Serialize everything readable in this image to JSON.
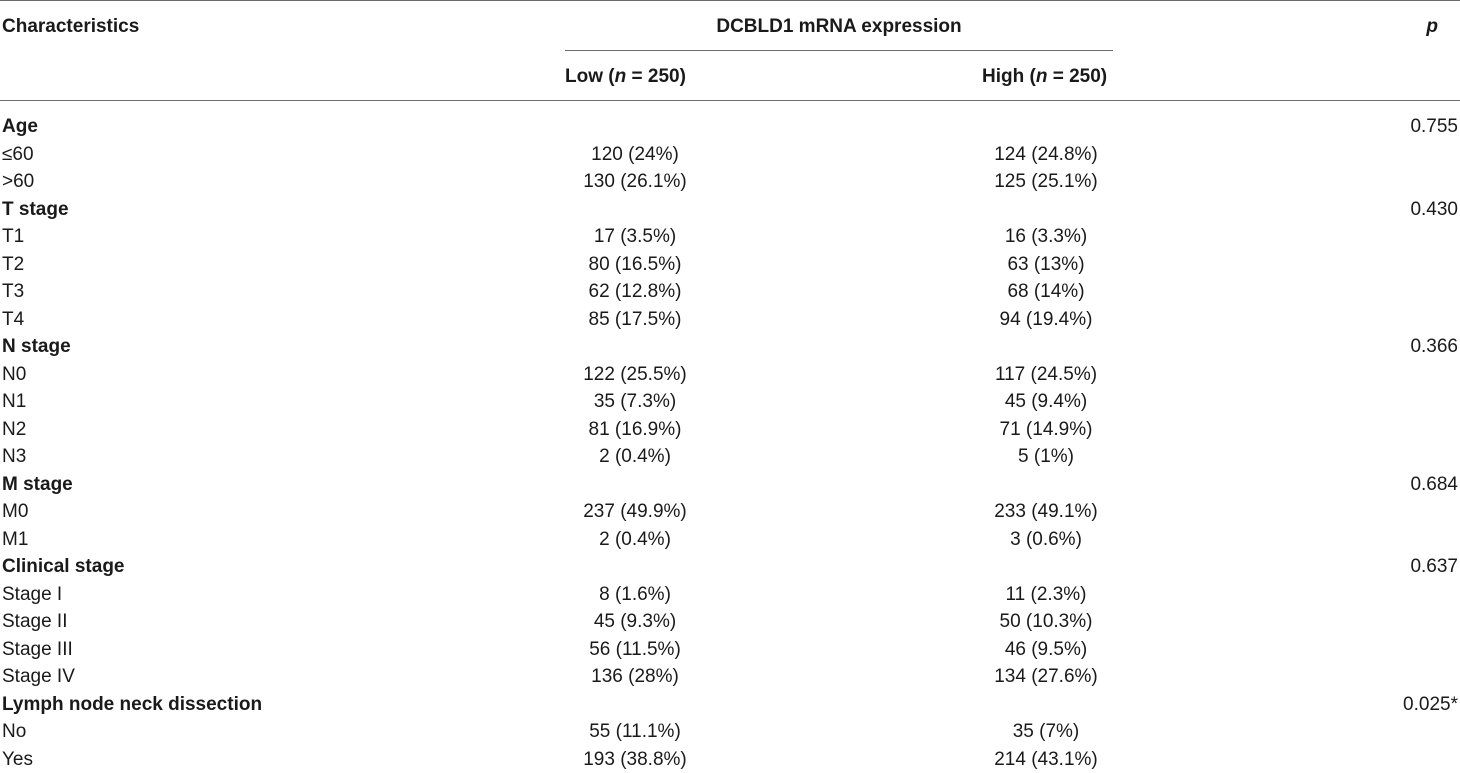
{
  "header": {
    "characteristics": "Characteristics",
    "group_title": "DCBLD1 mRNA expression",
    "p_label": "p",
    "low_prefix": "Low (",
    "low_n": "n",
    "low_suffix": " = 250)",
    "high_prefix": "High (",
    "high_n": "n",
    "high_suffix": " = 250)"
  },
  "rows": [
    {
      "label": "Age",
      "category": true,
      "low": "",
      "high": "",
      "p": "0.755"
    },
    {
      "label": "≤60",
      "category": false,
      "low": "120 (24%)",
      "high": "124 (24.8%)",
      "p": ""
    },
    {
      "label": ">60",
      "category": false,
      "low": "130 (26.1%)",
      "high": "125 (25.1%)",
      "p": ""
    },
    {
      "label": "T stage",
      "category": true,
      "low": "",
      "high": "",
      "p": "0.430"
    },
    {
      "label": "T1",
      "category": false,
      "low": "17 (3.5%)",
      "high": "16 (3.3%)",
      "p": ""
    },
    {
      "label": "T2",
      "category": false,
      "low": "80 (16.5%)",
      "high": "63 (13%)",
      "p": ""
    },
    {
      "label": "T3",
      "category": false,
      "low": "62 (12.8%)",
      "high": "68 (14%)",
      "p": ""
    },
    {
      "label": "T4",
      "category": false,
      "low": "85 (17.5%)",
      "high": "94 (19.4%)",
      "p": ""
    },
    {
      "label": "N stage",
      "category": true,
      "low": "",
      "high": "",
      "p": "0.366"
    },
    {
      "label": "N0",
      "category": false,
      "low": "122 (25.5%)",
      "high": "117 (24.5%)",
      "p": ""
    },
    {
      "label": "N1",
      "category": false,
      "low": "35 (7.3%)",
      "high": "45 (9.4%)",
      "p": ""
    },
    {
      "label": "N2",
      "category": false,
      "low": "81 (16.9%)",
      "high": "71 (14.9%)",
      "p": ""
    },
    {
      "label": "N3",
      "category": false,
      "low": "2 (0.4%)",
      "high": "5 (1%)",
      "p": ""
    },
    {
      "label": "M stage",
      "category": true,
      "low": "",
      "high": "",
      "p": "0.684"
    },
    {
      "label": "M0",
      "category": false,
      "low": "237 (49.9%)",
      "high": "233 (49.1%)",
      "p": ""
    },
    {
      "label": "M1",
      "category": false,
      "low": "2 (0.4%)",
      "high": "3 (0.6%)",
      "p": ""
    },
    {
      "label": "Clinical stage",
      "category": true,
      "low": "",
      "high": "",
      "p": "0.637"
    },
    {
      "label": "Stage I",
      "category": false,
      "low": "8 (1.6%)",
      "high": "11 (2.3%)",
      "p": ""
    },
    {
      "label": "Stage II",
      "category": false,
      "low": "45 (9.3%)",
      "high": "50 (10.3%)",
      "p": ""
    },
    {
      "label": "Stage III",
      "category": false,
      "low": "56 (11.5%)",
      "high": "46 (9.5%)",
      "p": ""
    },
    {
      "label": "Stage IV",
      "category": false,
      "low": "136 (28%)",
      "high": "134 (27.6%)",
      "p": ""
    },
    {
      "label": "Lymph node neck dissection",
      "category": true,
      "low": "",
      "high": "",
      "p": "0.025*"
    },
    {
      "label": "No",
      "category": false,
      "low": "55 (11.1%)",
      "high": "35 (7%)",
      "p": ""
    },
    {
      "label": "Yes",
      "category": false,
      "low": "193 (38.8%)",
      "high": "214 (43.1%)",
      "p": ""
    }
  ]
}
